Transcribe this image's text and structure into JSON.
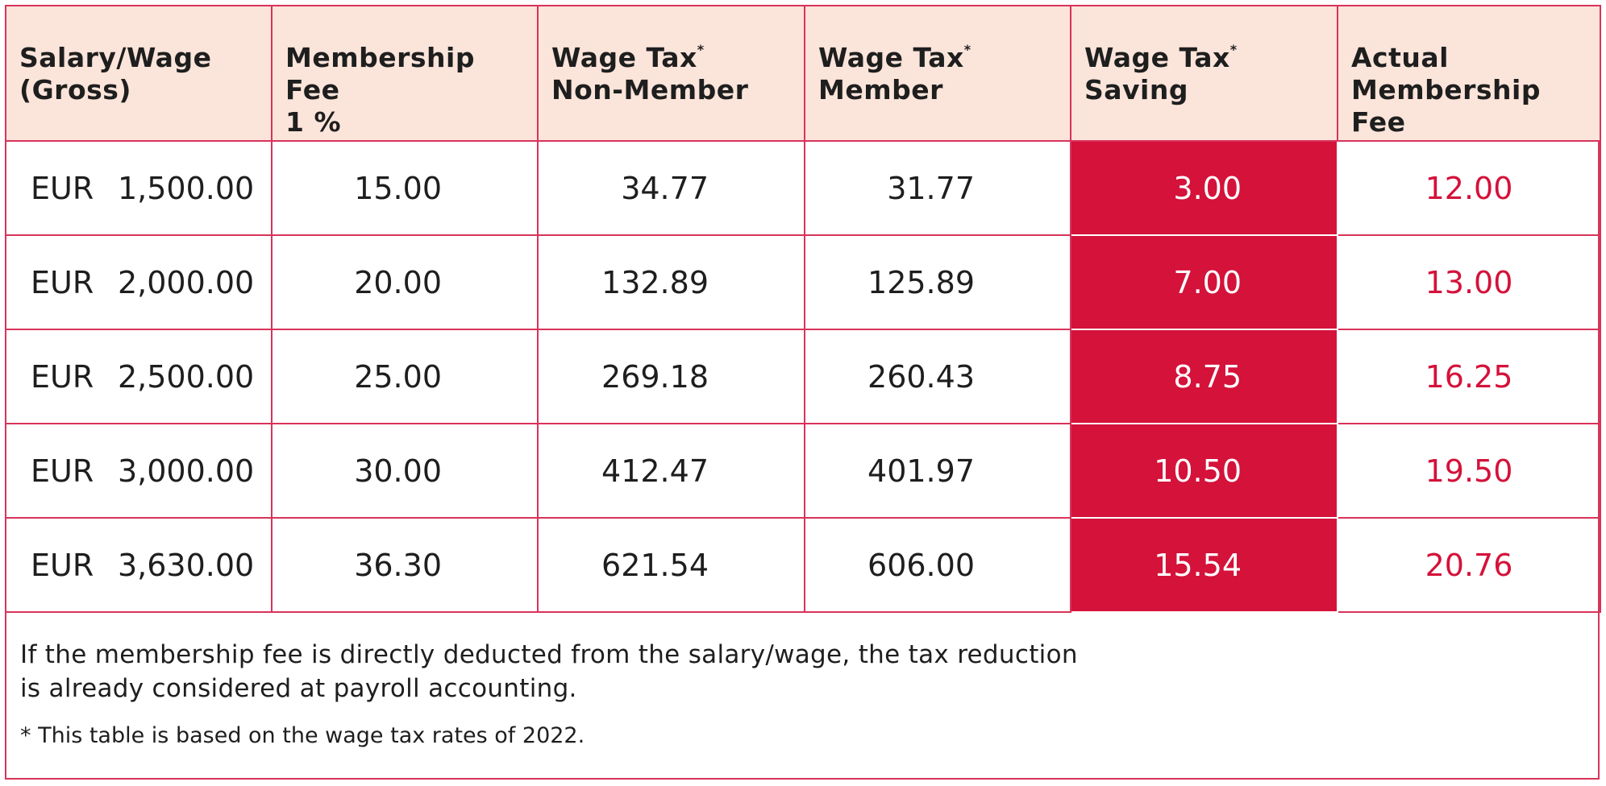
{
  "table": {
    "headers": {
      "salary": {
        "line1": "Salary/Wage",
        "line2": "(Gross)"
      },
      "fee": {
        "line1": "Membership Fee",
        "line2": "1 %"
      },
      "nonmember": {
        "line1": "Wage Tax",
        "mark": "*",
        "line2": "Non-Member"
      },
      "member": {
        "line1": "Wage Tax",
        "mark": "*",
        "line2": "Member"
      },
      "saving": {
        "line1": "Wage Tax",
        "mark": "*",
        "line2": "Saving"
      },
      "actual": {
        "line1": "Actual",
        "line2": "Membership Fee"
      }
    },
    "rows": [
      {
        "currency": "EUR",
        "salary": "1,500.00",
        "fee": "15.00",
        "nonmember": "34.77",
        "member": "31.77",
        "saving": "3.00",
        "actual": "12.00"
      },
      {
        "currency": "EUR",
        "salary": "2,000.00",
        "fee": "20.00",
        "nonmember": "132.89",
        "member": "125.89",
        "saving": "7.00",
        "actual": "13.00"
      },
      {
        "currency": "EUR",
        "salary": "2,500.00",
        "fee": "25.00",
        "nonmember": "269.18",
        "member": "260.43",
        "saving": "8.75",
        "actual": "16.25"
      },
      {
        "currency": "EUR",
        "salary": "3,000.00",
        "fee": "30.00",
        "nonmember": "412.47",
        "member": "401.97",
        "saving": "10.50",
        "actual": "19.50"
      },
      {
        "currency": "EUR",
        "salary": "3,630.00",
        "fee": "36.30",
        "nonmember": "621.54",
        "member": "606.00",
        "saving": "15.54",
        "actual": "20.76"
      }
    ]
  },
  "notes": {
    "main_line1": "If the membership fee is directly deducted from the salary/wage, the tax reduction",
    "main_line2": "is already considered at payroll accounting.",
    "footnote": "* This table is based on the wage tax rates of 2022."
  },
  "colors": {
    "border": "#d8335a",
    "header_bg": "#fbe4da",
    "accent_red": "#d4123a",
    "text": "#1e1e1e"
  }
}
